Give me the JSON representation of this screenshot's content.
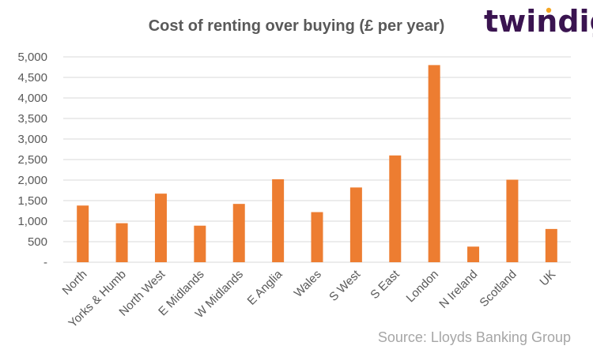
{
  "brand": {
    "name": "twindig",
    "dot_color": "#f5a623"
  },
  "source": "Source: Lloyds Banking Group",
  "chart_data": {
    "type": "bar",
    "title": "Cost of renting over buying (£ per year)",
    "xlabel": "",
    "ylabel": "",
    "categories": [
      "North",
      "Yorks & Humb",
      "North West",
      "E Midlands",
      "W Midlands",
      "E Anglia",
      "Wales",
      "S West",
      "S East",
      "London",
      "N Ireland",
      "Scotland",
      "UK"
    ],
    "values": [
      1380,
      950,
      1670,
      890,
      1420,
      2020,
      1220,
      1820,
      2600,
      4800,
      380,
      2010,
      810
    ],
    "ylim": [
      0,
      5000
    ],
    "yticks": [
      0,
      500,
      1000,
      1500,
      2000,
      2500,
      3000,
      3500,
      4000,
      4500,
      5000
    ],
    "ytick_labels": [
      "-",
      "500",
      "1,000",
      "1,500",
      "2,000",
      "2,500",
      "3,000",
      "3,500",
      "4,000",
      "4,500",
      "5,000"
    ],
    "grid": true,
    "legend": "none",
    "bar_color": "#ed7d31",
    "grid_color": "#d9d9d9"
  }
}
